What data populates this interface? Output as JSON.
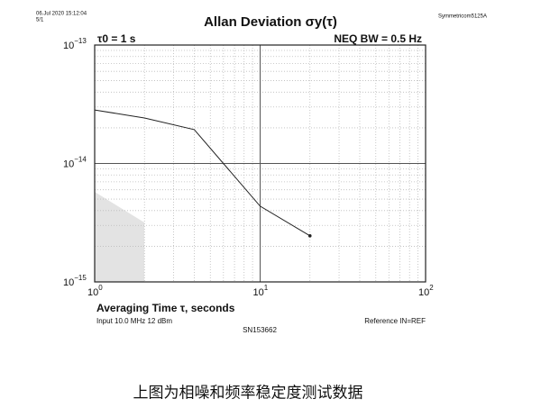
{
  "chart_data": {
    "type": "line",
    "title": "Allan Deviation σy(τ)",
    "annotations": [
      "06.Jul 2020 15:12:04",
      "5/1",
      "Symmetricom5125A",
      "τ0 = 1 s",
      "NEQ BW = 0.5 Hz",
      "Input 10.0 MHz 12 dBm",
      "Reference IN=REF",
      "SN153662"
    ],
    "x_label": "Averaging Time τ, seconds",
    "x": [
      1,
      2,
      4,
      10,
      20
    ],
    "series": [
      {
        "color": "#222222",
        "values": [
          2.83e-14,
          2.42e-14,
          1.93e-14,
          4.36e-15,
          2.45e-15
        ]
      }
    ],
    "xlog": true,
    "ylog": true,
    "xlim": [
      1,
      100
    ],
    "ylim": [
      1e-15,
      1e-13
    ],
    "xticks": [
      {
        "value": 1,
        "label": "100"
      },
      {
        "value": 10,
        "label": "101"
      },
      {
        "value": 100,
        "label": "102"
      }
    ],
    "yticks": [
      {
        "value": 1e-15,
        "label": "10−15"
      },
      {
        "value": 1e-14,
        "label": "10−14"
      },
      {
        "value": 1e-13,
        "label": "10−13"
      }
    ],
    "grid": true
  },
  "caption": "上图为相噪和频率稳定度测试数据"
}
